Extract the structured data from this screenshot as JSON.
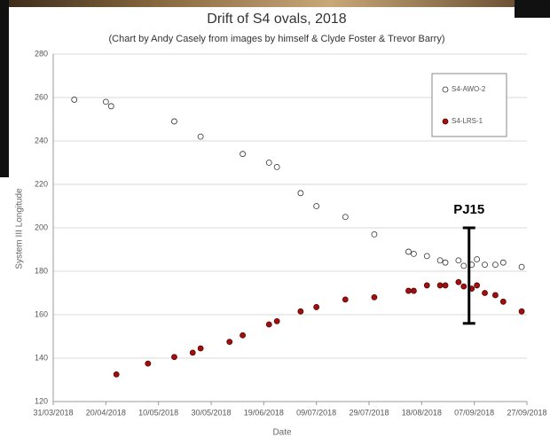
{
  "chart_data": {
    "type": "scatter",
    "title": "Drift of S4 ovals, 2018",
    "subtitle": "(Chart by Andy Casely from images by himself & Clyde Foster & Trevor Barry)",
    "x_label": "Date",
    "y_label": "System III Longitude",
    "xlim": [
      "31/03/2018",
      "27/09/2018"
    ],
    "xticks": [
      "31/03/2018",
      "20/04/2018",
      "10/05/2018",
      "30/05/2018",
      "19/06/2018",
      "09/07/2018",
      "29/07/2018",
      "18/08/2018",
      "07/09/2018",
      "27/09/2018"
    ],
    "ylim": [
      120,
      280
    ],
    "yticks": [
      120,
      140,
      160,
      180,
      200,
      220,
      240,
      260,
      280
    ],
    "grid": true,
    "legend": "upper right",
    "series": [
      {
        "name": "S4-AWO-2",
        "color": "#ffffff",
        "edgecolor": "#333333",
        "x": [
          "08/04/2018",
          "20/04/2018",
          "22/04/2018",
          "16/05/2018",
          "26/05/2018",
          "11/06/2018",
          "21/06/2018",
          "24/06/2018",
          "03/07/2018",
          "09/07/2018",
          "20/07/2018",
          "31/07/2018",
          "13/08/2018",
          "15/08/2018",
          "20/08/2018",
          "25/08/2018",
          "27/08/2018",
          "01/09/2018",
          "03/09/2018",
          "06/09/2018",
          "08/09/2018",
          "11/09/2018",
          "15/09/2018",
          "18/09/2018",
          "25/09/2018"
        ],
        "values": [
          259,
          258,
          256,
          249,
          242,
          234,
          230,
          228,
          216,
          210,
          205,
          197,
          189,
          188,
          187,
          185,
          184,
          185,
          182.5,
          183,
          185.5,
          183,
          183,
          184,
          182
        ]
      },
      {
        "name": "S4-LRS-1",
        "color": "#a01010",
        "edgecolor": "#5a0000",
        "x": [
          "24/04/2018",
          "06/05/2018",
          "16/05/2018",
          "23/05/2018",
          "26/05/2018",
          "06/06/2018",
          "11/06/2018",
          "21/06/2018",
          "24/06/2018",
          "03/07/2018",
          "09/07/2018",
          "20/07/2018",
          "31/07/2018",
          "13/08/2018",
          "15/08/2018",
          "20/08/2018",
          "25/08/2018",
          "27/08/2018",
          "01/09/2018",
          "03/09/2018",
          "06/09/2018",
          "08/09/2018",
          "11/09/2018",
          "15/09/2018",
          "18/09/2018",
          "25/09/2018"
        ],
        "values": [
          132.5,
          137.5,
          140.5,
          142.5,
          144.5,
          147.5,
          150.5,
          155.5,
          157,
          161.5,
          163.5,
          167,
          168,
          171,
          171,
          173.5,
          173.5,
          173.5,
          175,
          173,
          172,
          173.5,
          170,
          169,
          166,
          161.5
        ]
      }
    ],
    "annotation": {
      "text": "PJ15",
      "x": "05/09/2018",
      "range": [
        156,
        200
      ]
    }
  }
}
